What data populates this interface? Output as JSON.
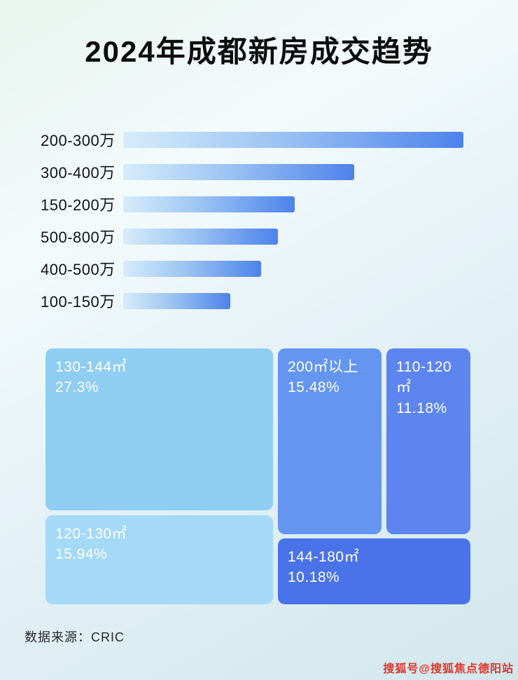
{
  "title": "2024年成都新房成交趋势",
  "footer": {
    "source": "数据来源：CRIC",
    "watermark": "搜狐号@搜狐焦点德阳站"
  },
  "colors": {
    "bar_gradient_start": "#d6ecfa",
    "bar_gradient_end": "#4d82ec",
    "treemap_block_130_144": "#8fcdf3",
    "treemap_block_120_130": "#a4d9f7",
    "treemap_block_200_plus": "#6495f1",
    "treemap_block_110_120": "#5c85ef",
    "treemap_block_144_180": "#4a73e9",
    "title_text": "#0d0d0d",
    "treemap_text": "#ffffff",
    "watermark_text": "#e0352b"
  },
  "chart_data": [
    {
      "type": "bar",
      "orientation": "horizontal",
      "title": "2024年成都新房成交趋势",
      "categories": [
        "200-300万",
        "300-400万",
        "150-200万",
        "500-800万",
        "400-500万",
        "100-150万"
      ],
      "values_relative_pct": [
        100,
        68,
        50.5,
        45.5,
        40.5,
        31.5
      ],
      "xlabel": "",
      "ylabel": "",
      "legend": "none",
      "grid": "off"
    },
    {
      "type": "treemap",
      "items": [
        {
          "label": "130-144㎡",
          "value": "27.3%"
        },
        {
          "label": "120-130㎡",
          "value": "15.94%"
        },
        {
          "label": "200㎡以上",
          "value": "15.48%"
        },
        {
          "label": "110-120㎡",
          "value": "11.18%"
        },
        {
          "label": "144-180㎡",
          "value": "10.18%"
        }
      ]
    }
  ]
}
